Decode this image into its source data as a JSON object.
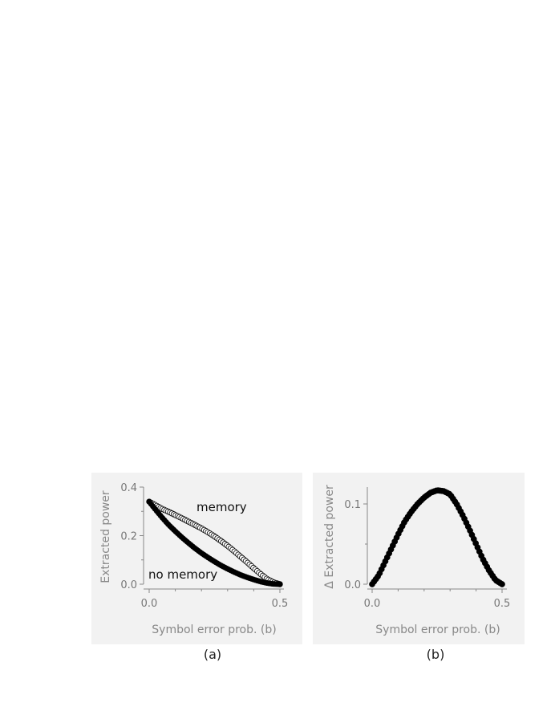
{
  "chart_data": [
    {
      "type": "scatter",
      "panel_label": "(a)",
      "xlabel": "Symbol error prob.  (b)",
      "ylabel": "Extracted power",
      "xlim": [
        0,
        0.5
      ],
      "ylim": [
        0,
        0.4
      ],
      "x_ticks": [
        "0.0",
        "0.5"
      ],
      "y_ticks": [
        "0.0",
        "0.2",
        "0.4"
      ],
      "grid": false,
      "annotations": [
        "memory",
        "no memory"
      ],
      "series": [
        {
          "name": "memory",
          "marker": "open-circle",
          "color": "#000000",
          "x": [
            0.0,
            0.025,
            0.05,
            0.075,
            0.1,
            0.125,
            0.15,
            0.175,
            0.2,
            0.225,
            0.25,
            0.275,
            0.3,
            0.325,
            0.35,
            0.375,
            0.4,
            0.425,
            0.45,
            0.475,
            0.5
          ],
          "y": [
            0.34,
            0.325,
            0.31,
            0.298,
            0.285,
            0.272,
            0.258,
            0.244,
            0.23,
            0.214,
            0.197,
            0.178,
            0.158,
            0.136,
            0.113,
            0.09,
            0.066,
            0.043,
            0.022,
            0.008,
            0.0
          ]
        },
        {
          "name": "no memory",
          "marker": "filled-circle",
          "color": "#000000",
          "x": [
            0.0,
            0.025,
            0.05,
            0.075,
            0.1,
            0.125,
            0.15,
            0.175,
            0.2,
            0.225,
            0.25,
            0.275,
            0.3,
            0.325,
            0.35,
            0.375,
            0.4,
            0.425,
            0.45,
            0.475,
            0.5
          ],
          "y": [
            0.34,
            0.306,
            0.274,
            0.244,
            0.218,
            0.193,
            0.17,
            0.148,
            0.128,
            0.11,
            0.093,
            0.077,
            0.063,
            0.05,
            0.038,
            0.028,
            0.019,
            0.011,
            0.005,
            0.001,
            0.0
          ]
        }
      ]
    },
    {
      "type": "scatter",
      "panel_label": "(b)",
      "xlabel": "Symbol error prob.  (b)",
      "ylabel": "Δ Extracted power",
      "xlim": [
        0,
        0.5
      ],
      "ylim": [
        0,
        0.12
      ],
      "x_ticks": [
        "0.0",
        "0.5"
      ],
      "y_ticks": [
        "0.0",
        "0.1"
      ],
      "grid": false,
      "series": [
        {
          "marker": "filled-circle",
          "color": "#000000",
          "x": [
            0.0,
            0.025,
            0.05,
            0.075,
            0.1,
            0.125,
            0.15,
            0.175,
            0.2,
            0.225,
            0.25,
            0.275,
            0.3,
            0.325,
            0.35,
            0.375,
            0.4,
            0.425,
            0.45,
            0.475,
            0.5
          ],
          "y": [
            0.0,
            0.011,
            0.028,
            0.045,
            0.062,
            0.078,
            0.09,
            0.1,
            0.108,
            0.114,
            0.117,
            0.116,
            0.112,
            0.1,
            0.085,
            0.068,
            0.05,
            0.032,
            0.017,
            0.005,
            0.0
          ]
        }
      ]
    }
  ]
}
